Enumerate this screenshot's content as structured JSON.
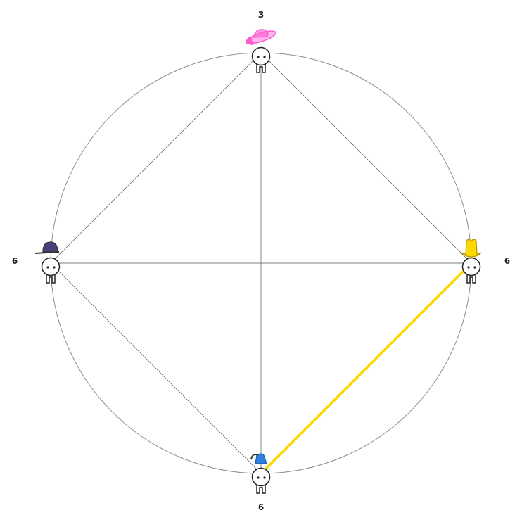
{
  "nodes": [
    {
      "id": "top",
      "label": "3",
      "hat": "sunhat",
      "hat_color": "#ff5ad2"
    },
    {
      "id": "right",
      "label": "6",
      "hat": "cowboy",
      "hat_color": "#ffd700"
    },
    {
      "id": "bottom",
      "label": "6",
      "hat": "beanie",
      "hat_color": "#2f7ee0"
    },
    {
      "id": "left",
      "label": "6",
      "hat": "cap",
      "hat_color": "#4a3f7a"
    }
  ],
  "edges": [
    {
      "from": "top",
      "to": "right",
      "highlight": false
    },
    {
      "from": "top",
      "to": "bottom",
      "highlight": false
    },
    {
      "from": "top",
      "to": "left",
      "highlight": false
    },
    {
      "from": "left",
      "to": "right",
      "highlight": false
    },
    {
      "from": "left",
      "to": "bottom",
      "highlight": false
    },
    {
      "from": "right",
      "to": "bottom",
      "highlight": true
    }
  ],
  "highlight_color": "#ffd700",
  "ring_color": "#8c8c8c"
}
